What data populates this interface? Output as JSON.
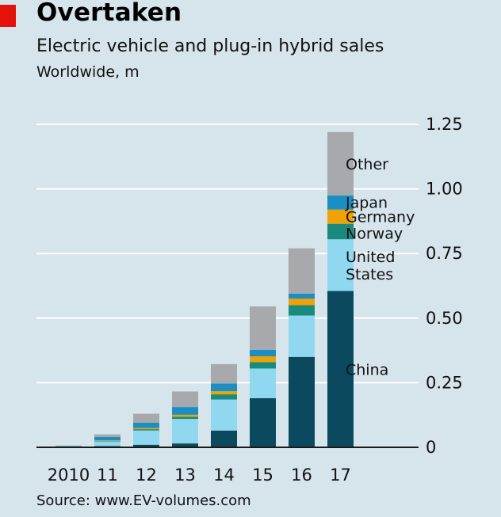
{
  "header": {
    "title": "Overtaken",
    "subtitle": "Electric vehicle and plug-in hybrid sales",
    "unit": "Worldwide, m"
  },
  "footer": {
    "source": "Source: www.EV-volumes.com"
  },
  "colors": {
    "China": "#0b4a5e",
    "United States": "#8fd8f0",
    "Norway": "#1a8a7f",
    "Germany": "#f0a202",
    "Japan": "#1b8fc4",
    "Other": "#a7a9ac",
    "background": "#d6e4ec",
    "accent": "#e3120b"
  },
  "chart_data": {
    "type": "bar",
    "stacked": true,
    "title": "Electric vehicle and plug-in hybrid sales",
    "ylabel": "Worldwide, m",
    "xlabel": "",
    "ylim": [
      0,
      1.25
    ],
    "yticks": [
      0,
      0.25,
      0.5,
      0.75,
      1.0,
      1.25
    ],
    "ytick_labels": [
      "0",
      "0.25",
      "0.50",
      "0.75",
      "1.00",
      "1.25"
    ],
    "axis_side": "right",
    "categories": [
      "2010",
      "11",
      "12",
      "13",
      "14",
      "15",
      "16",
      "17"
    ],
    "series": [
      {
        "name": "China",
        "label_lines": [
          "China"
        ],
        "values": [
          0.001,
          0.005,
          0.01,
          0.015,
          0.065,
          0.19,
          0.35,
          0.605
        ]
      },
      {
        "name": "United States",
        "label_lines": [
          "United",
          "States"
        ],
        "values": [
          0.003,
          0.018,
          0.055,
          0.095,
          0.12,
          0.115,
          0.16,
          0.2
        ]
      },
      {
        "name": "Norway",
        "label_lines": [
          "Norway"
        ],
        "values": [
          0.0005,
          0.002,
          0.005,
          0.008,
          0.02,
          0.025,
          0.04,
          0.06
        ]
      },
      {
        "name": "Germany",
        "label_lines": [
          "Germany"
        ],
        "values": [
          0.0005,
          0.002,
          0.005,
          0.008,
          0.012,
          0.022,
          0.025,
          0.055
        ]
      },
      {
        "name": "Japan",
        "label_lines": [
          "Japan"
        ],
        "values": [
          0.001,
          0.013,
          0.02,
          0.03,
          0.03,
          0.025,
          0.02,
          0.055
        ]
      },
      {
        "name": "Other",
        "label_lines": [
          "Other"
        ],
        "values": [
          0.001,
          0.01,
          0.035,
          0.06,
          0.075,
          0.168,
          0.175,
          0.245
        ]
      }
    ]
  }
}
